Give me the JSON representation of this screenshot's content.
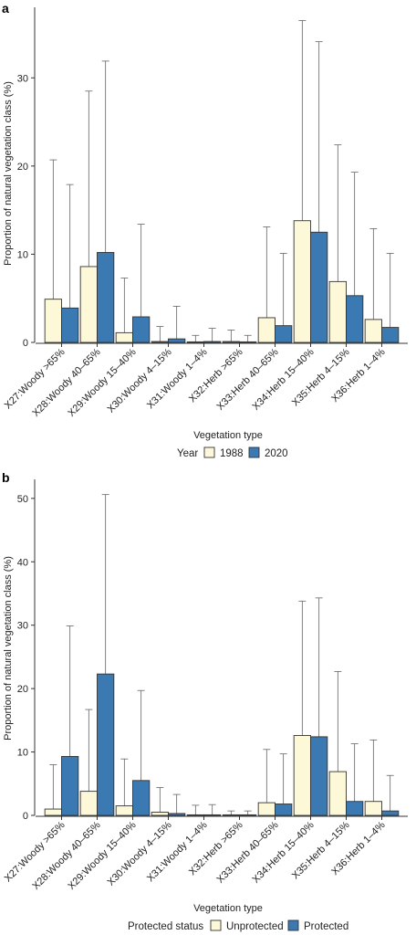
{
  "chart_data": [
    {
      "panel": "a",
      "type": "bar",
      "categories": [
        "X27:Woody >65%",
        "X28:Woody 40–65%",
        "X29:Woody 15–40%",
        "X30:Woody 4–15%",
        "X31:Woody 1–4%",
        "X32:Herb >65%",
        "X33:Herb 40–65%",
        "X34:Herb 15–40%",
        "X35:Herb 4–15%",
        "X36:Herb 1–4%"
      ],
      "series": [
        {
          "name": "1988",
          "color": "#FDF8D8",
          "values": [
            4.9,
            8.6,
            1.1,
            0.1,
            0.05,
            0.1,
            2.8,
            13.8,
            6.9,
            2.6
          ],
          "error_upper": [
            20.7,
            28.5,
            7.3,
            1.8,
            0.8,
            1.4,
            13.1,
            36.5,
            22.4,
            12.9
          ]
        },
        {
          "name": "2020",
          "color": "#3B79B3",
          "values": [
            3.9,
            10.2,
            2.9,
            0.4,
            0.1,
            0.05,
            1.9,
            12.5,
            5.3,
            1.7
          ],
          "error_upper": [
            17.9,
            31.9,
            13.4,
            4.1,
            1.6,
            0.8,
            10.1,
            34.1,
            19.3,
            10.1
          ]
        }
      ],
      "ylim": [
        0,
        38
      ],
      "yticks": [
        0,
        10,
        20,
        30
      ],
      "ylabel": "Proportion of natural vegetation class (%)",
      "xlabel": "Vegetation type",
      "legend_title": "Year",
      "legend_position": "bottom"
    },
    {
      "panel": "b",
      "type": "bar",
      "categories": [
        "X27:Woody >65%",
        "X28:Woody 40–65%",
        "X29:Woody 15–40%",
        "X30:Woody 4–15%",
        "X31:Woody 1–4%",
        "X32:Herb >65%",
        "X33:Herb 40–65%",
        "X34:Herb 15–40%",
        "X35:Herb 4–15%",
        "X36:Herb 1–4%"
      ],
      "series": [
        {
          "name": "Unprotected",
          "color": "#FDF8D8",
          "values": [
            1.0,
            3.8,
            1.5,
            0.5,
            0.05,
            0.05,
            2.0,
            12.6,
            6.9,
            2.2
          ],
          "error_upper": [
            8.0,
            16.7,
            8.9,
            4.4,
            1.6,
            0.7,
            10.4,
            33.8,
            22.7,
            11.9
          ]
        },
        {
          "name": "Protected",
          "color": "#3B79B3",
          "values": [
            9.3,
            22.3,
            5.5,
            0.3,
            0.05,
            0.05,
            1.8,
            12.4,
            2.2,
            0.7
          ],
          "error_upper": [
            29.9,
            50.6,
            19.7,
            3.3,
            1.7,
            0.7,
            9.7,
            34.3,
            11.3,
            6.3
          ]
        }
      ],
      "ylim": [
        0,
        53
      ],
      "yticks": [
        0,
        10,
        20,
        30,
        40,
        50
      ],
      "ylabel": "Proportion of natural vegetation class (%)",
      "xlabel": "Vegetation type",
      "legend_title": "Protected status",
      "legend_position": "bottom"
    }
  ]
}
